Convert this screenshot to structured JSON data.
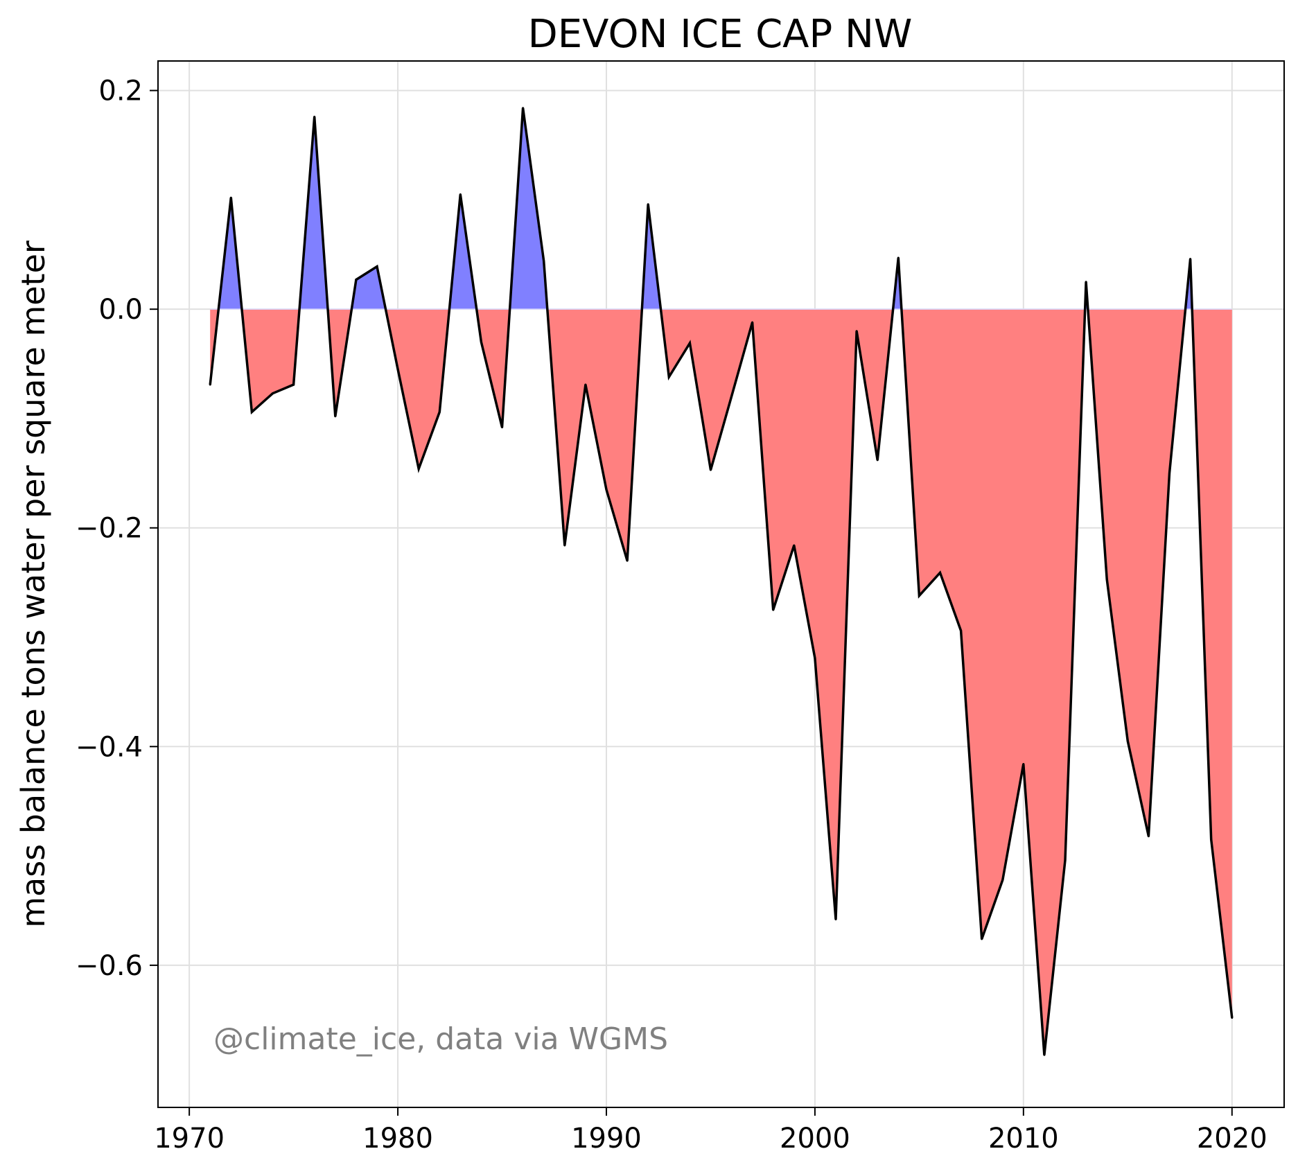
{
  "chart_data": {
    "type": "area",
    "title": "DEVON ICE CAP NW",
    "xlabel": "",
    "ylabel": "mass balance tons water per square meter",
    "annotation": "@climate_ice, data via WGMS",
    "xlim": [
      1968.5,
      2022.5
    ],
    "ylim": [
      -0.73,
      0.227
    ],
    "xticks": [
      1970,
      1980,
      1990,
      2000,
      2010,
      2020
    ],
    "xtick_labels": [
      "1970",
      "1980",
      "1990",
      "2000",
      "2010",
      "2020"
    ],
    "yticks": [
      0.2,
      0.0,
      -0.2,
      -0.4,
      -0.6
    ],
    "ytick_labels": [
      "0.2",
      "0.0",
      "−0.2",
      "−0.4",
      "−0.6"
    ],
    "grid": true,
    "positive_color": "#8080ff",
    "negative_color": "#ff8080",
    "line_color": "#000000",
    "x": [
      1971,
      1972,
      1973,
      1974,
      1975,
      1976,
      1977,
      1978,
      1979,
      1980,
      1981,
      1982,
      1983,
      1984,
      1985,
      1986,
      1987,
      1988,
      1989,
      1990,
      1991,
      1992,
      1993,
      1994,
      1995,
      1996,
      1997,
      1998,
      1999,
      2000,
      2001,
      2002,
      2003,
      2004,
      2005,
      2006,
      2007,
      2008,
      2009,
      2010,
      2011,
      2012,
      2013,
      2014,
      2015,
      2016,
      2017,
      2018,
      2019,
      2020
    ],
    "values": [
      -0.069,
      0.102,
      -0.094,
      -0.077,
      -0.069,
      0.176,
      -0.098,
      0.027,
      0.039,
      -0.055,
      -0.146,
      -0.094,
      0.105,
      -0.03,
      -0.108,
      0.184,
      0.044,
      -0.216,
      -0.069,
      -0.165,
      -0.23,
      0.096,
      -0.062,
      -0.031,
      -0.147,
      -0.08,
      -0.012,
      -0.275,
      -0.216,
      -0.319,
      -0.558,
      -0.02,
      -0.138,
      0.047,
      -0.262,
      -0.241,
      -0.294,
      -0.576,
      -0.522,
      -0.416,
      -0.682,
      -0.504,
      0.025,
      -0.247,
      -0.395,
      -0.482,
      -0.15,
      0.046,
      -0.485,
      -0.648
    ]
  }
}
